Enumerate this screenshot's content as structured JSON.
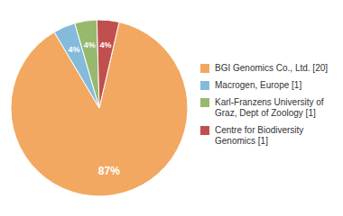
{
  "chart_data": {
    "type": "pie",
    "categories": [
      "BGI Genomics Co., Ltd. [20]",
      "Macrogen, Europe [1]",
      "Karl-Franzens University of\nGraz, Dept of Zoology [1]",
      "Centre for Biodiversity\nGenomics [1]"
    ],
    "values": [
      87,
      4,
      4,
      4
    ],
    "value_labels": [
      "87%",
      "4%",
      "4%",
      "4%"
    ],
    "colors": [
      "#f2a860",
      "#85bbda",
      "#96b96e",
      "#c0504d"
    ],
    "data_labels": true,
    "legend": "right"
  }
}
